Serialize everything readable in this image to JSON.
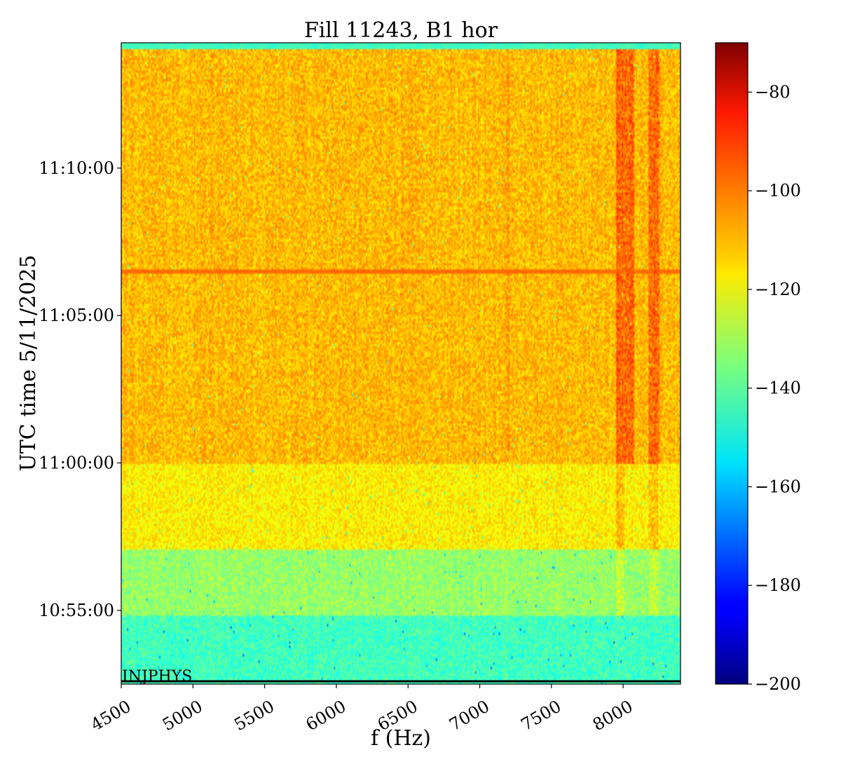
{
  "chart_data": {
    "type": "heatmap",
    "title": "Fill 11243, B1 hor",
    "xlabel": "f (Hz)",
    "ylabel": "UTC time 5/11/2025",
    "xlim": [
      4500,
      8400
    ],
    "ylim": [
      "10:52:30",
      "11:14:15"
    ],
    "x_ticks": [
      4500,
      5000,
      5500,
      6000,
      6500,
      7000,
      7500,
      8000
    ],
    "y_ticks": [
      {
        "label": "10:55:00",
        "seconds": 39300
      },
      {
        "label": "11:00:00",
        "seconds": 39600
      },
      {
        "label": "11:05:00",
        "seconds": 39900
      },
      {
        "label": "11:10:00",
        "seconds": 40200
      }
    ],
    "colormap": "jet",
    "colorbar": {
      "min": -200,
      "max": -70,
      "ticks": [
        -200,
        -180,
        -160,
        -140,
        -120,
        -100,
        -80
      ]
    },
    "annotation": "INJPHYS",
    "features": {
      "regimes": [
        {
          "from": "10:52:30",
          "to": "10:54:50",
          "level": -143
        },
        {
          "from": "10:54:50",
          "to": "10:57:05",
          "level": -132
        },
        {
          "from": "10:57:05",
          "to": "11:00:00",
          "level": -117
        },
        {
          "from": "11:00:00",
          "to": "11:14:00",
          "level": -110
        }
      ],
      "horizontal_line": {
        "time": "11:06:30",
        "level": -100
      },
      "hot_bands_hz": [
        [
          7950,
          8080
        ],
        [
          8180,
          8250
        ]
      ],
      "weak_line_hz": 7200
    }
  }
}
